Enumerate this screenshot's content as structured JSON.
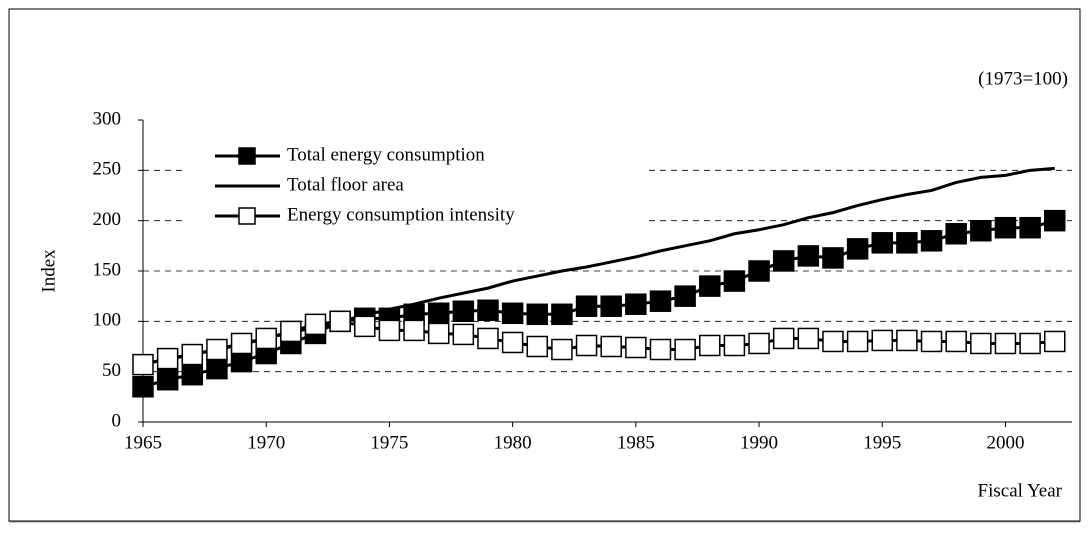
{
  "chart_data": {
    "type": "line",
    "annotation": "(1973=100)",
    "y_label": "Index",
    "x_label": "Fiscal Year",
    "x": [
      1965,
      1966,
      1967,
      1968,
      1969,
      1970,
      1971,
      1972,
      1973,
      1974,
      1975,
      1976,
      1977,
      1978,
      1979,
      1980,
      1981,
      1982,
      1983,
      1984,
      1985,
      1986,
      1987,
      1988,
      1989,
      1990,
      1991,
      1992,
      1993,
      1994,
      1995,
      1996,
      1997,
      1998,
      1999,
      2000,
      2001,
      2002
    ],
    "series": [
      {
        "name": "Total energy consumption",
        "color": "#000000",
        "marker": "filled-square",
        "values": [
          35,
          42,
          47,
          53,
          60,
          68,
          78,
          88,
          100,
          103,
          103,
          107,
          108,
          110,
          111,
          108,
          107,
          107,
          115,
          115,
          117,
          120,
          125,
          135,
          140,
          150,
          160,
          165,
          163,
          172,
          178,
          178,
          180,
          187,
          190,
          193,
          193,
          200
        ]
      },
      {
        "name": "Total floor area",
        "color": "#000000",
        "marker": "none",
        "values": [
          58,
          62,
          67,
          72,
          77,
          83,
          89,
          94,
          100,
          106,
          112,
          117,
          123,
          128,
          133,
          140,
          145,
          150,
          154,
          159,
          164,
          170,
          175,
          180,
          187,
          191,
          196,
          203,
          208,
          215,
          221,
          226,
          230,
          238,
          243,
          245,
          250,
          252
        ]
      },
      {
        "name": "Energy consumption intensity",
        "color": "#000000",
        "marker": "open-square",
        "values": [
          57,
          63,
          67,
          72,
          78,
          83,
          90,
          97,
          100,
          95,
          91,
          91,
          88,
          87,
          83,
          79,
          75,
          72,
          76,
          75,
          74,
          72,
          72,
          76,
          76,
          78,
          83,
          83,
          80,
          80,
          81,
          81,
          80,
          80,
          78,
          78,
          78,
          80
        ]
      }
    ],
    "xlim": [
      1965,
      2002.7
    ],
    "xticks": [
      1965,
      1970,
      1975,
      1980,
      1985,
      1990,
      1995,
      2000
    ],
    "ylim": [
      0,
      300
    ],
    "yticks": [
      0,
      50,
      100,
      150,
      200,
      250,
      300
    ],
    "grid": true,
    "legend": "top-left"
  }
}
